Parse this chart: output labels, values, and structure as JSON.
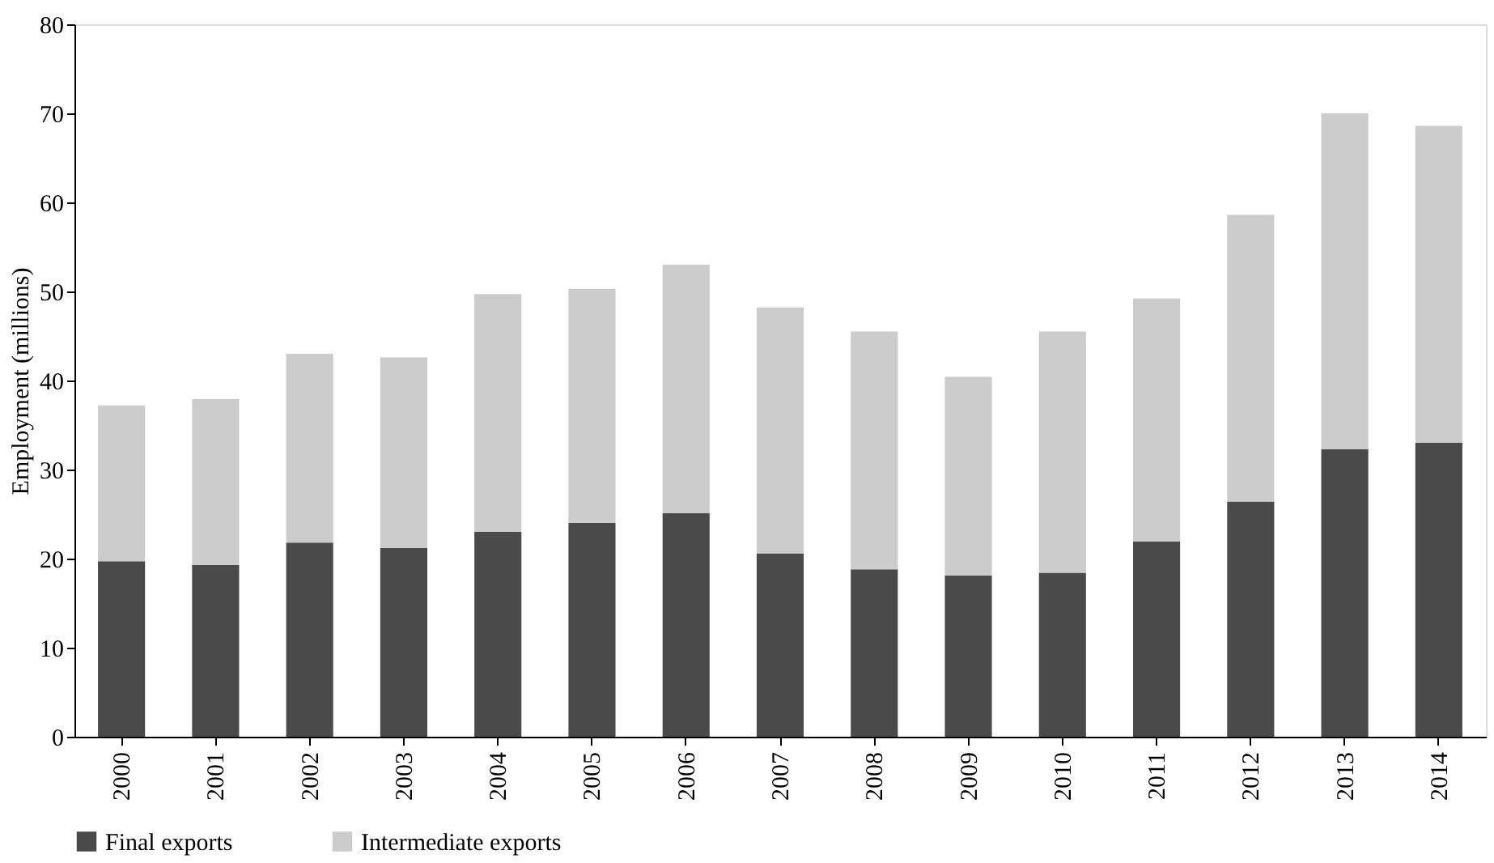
{
  "chart_data": {
    "type": "bar",
    "ylabel": "Employment (millions)",
    "categories": [
      "2000",
      "2001",
      "2002",
      "2003",
      "2004",
      "2005",
      "2006",
      "2007",
      "2008",
      "2009",
      "2010",
      "2011",
      "2012",
      "2013",
      "2014"
    ],
    "series": [
      {
        "name": "Final exports",
        "color": "#4a4a4a",
        "values": [
          19.7,
          19.3,
          21.8,
          21.2,
          23.0,
          24.0,
          25.1,
          20.6,
          18.8,
          18.1,
          18.4,
          21.9,
          26.4,
          32.3,
          33.0
        ]
      },
      {
        "name": "Intermediate exports",
        "color": "#cccccc",
        "values": [
          17.5,
          18.6,
          21.2,
          21.4,
          26.7,
          26.3,
          27.9,
          27.6,
          26.7,
          22.3,
          27.1,
          27.3,
          32.2,
          37.7,
          35.6
        ]
      }
    ],
    "stacked": true,
    "ylim": [
      0,
      80
    ],
    "yticks": [
      0,
      10,
      20,
      30,
      40,
      50,
      60,
      70,
      80
    ],
    "grid": false,
    "legend": "bottom"
  }
}
